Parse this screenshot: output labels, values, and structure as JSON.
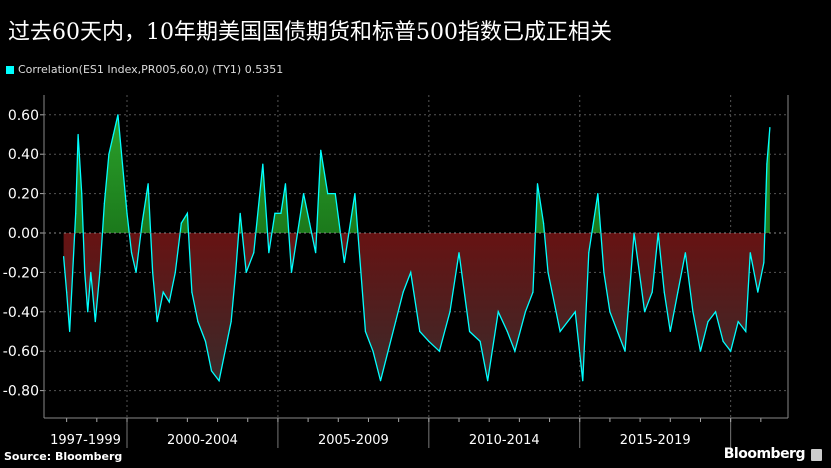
{
  "title": "过去60天内，10年期美国国债期货和标普500指数已成正相关",
  "source": "Source: Bloomberg",
  "brand": "Bloomberg",
  "chart_data": {
    "type": "area",
    "title": "过去60天内，10年期美国国债期货和标普500指数已成正相关",
    "legend": [
      {
        "label": "Correlation(ES1 Index,PR005,60,0) (TY1) 0.5351",
        "color": "#00ffff"
      }
    ],
    "legend_position": "top-left",
    "xlabel": "",
    "ylabel": "",
    "xlim": [
      1997.25,
      2021.9
    ],
    "ylim": [
      -0.9,
      0.78
    ],
    "yticks": [
      0.6,
      0.4,
      0.2,
      0.0,
      -0.2,
      -0.4,
      -0.6,
      -0.8
    ],
    "ytick_labels": [
      "0.60",
      "0.40",
      "0.20",
      "0.00",
      "-0.20",
      "-0.40",
      "-0.60",
      "-0.80"
    ],
    "x_periods": [
      {
        "label": "1997-1999",
        "from": 1997.25,
        "to": 2000
      },
      {
        "label": "2000-2004",
        "from": 2000,
        "to": 2005
      },
      {
        "label": "2005-2009",
        "from": 2005,
        "to": 2010
      },
      {
        "label": "2010-2014",
        "from": 2010,
        "to": 2015
      },
      {
        "label": "2015-2019",
        "from": 2015,
        "to": 2020
      }
    ],
    "x_separators": [
      2000,
      2005,
      2010,
      2015,
      2020
    ],
    "grid": true,
    "positive_color": "#1e8a1e",
    "negative_color": "#8b0000",
    "line_color": "#00ffff",
    "last_value": 0.5351,
    "series": [
      {
        "name": "Correlation(ES1 Index,PR005,60,0) (TY1)",
        "x": [
          1997.9,
          1998.0,
          1998.1,
          1998.2,
          1998.3,
          1998.38,
          1998.5,
          1998.6,
          1998.7,
          1998.8,
          1998.95,
          1999.1,
          1999.25,
          1999.4,
          1999.55,
          1999.7,
          1999.85,
          2000.0,
          2000.15,
          2000.3,
          2000.5,
          2000.7,
          2000.85,
          2001.0,
          2001.2,
          2001.4,
          2001.6,
          2001.8,
          2002.0,
          2002.15,
          2002.35,
          2002.6,
          2002.8,
          2003.05,
          2003.25,
          2003.45,
          2003.6,
          2003.75,
          2003.95,
          2004.2,
          2004.5,
          2004.7,
          2004.9,
          2005.1,
          2005.25,
          2005.45,
          2005.65,
          2005.85,
          2006.05,
          2006.25,
          2006.42,
          2006.65,
          2006.9,
          2007.2,
          2007.55,
          2007.9,
          2008.15,
          2008.4,
          2008.65,
          2008.9,
          2009.15,
          2009.4,
          2009.7,
          2010.0,
          2010.35,
          2010.7,
          2011.0,
          2011.35,
          2011.7,
          2011.95,
          2012.3,
          2012.6,
          2012.85,
          2013.2,
          2013.45,
          2013.6,
          2013.8,
          2013.95,
          2014.35,
          2014.85,
          2015.1,
          2015.3,
          2015.6,
          2015.8,
          2016.0,
          2016.25,
          2016.5,
          2016.8,
          2017.15,
          2017.4,
          2017.6,
          2017.8,
          2018.0,
          2018.25,
          2018.5,
          2018.75,
          2019.0,
          2019.25,
          2019.5,
          2019.75,
          2020.0,
          2020.25,
          2020.5,
          2020.65,
          2020.9,
          2021.1,
          2021.2,
          2021.3
        ],
        "y": [
          -0.12,
          -0.3,
          -0.5,
          -0.2,
          0.1,
          0.5,
          0.2,
          -0.2,
          -0.4,
          -0.2,
          -0.45,
          -0.2,
          0.15,
          0.4,
          0.5,
          0.6,
          0.35,
          0.1,
          -0.1,
          -0.2,
          0.05,
          0.25,
          -0.2,
          -0.45,
          -0.3,
          -0.35,
          -0.2,
          0.05,
          0.1,
          -0.3,
          -0.45,
          -0.55,
          -0.7,
          -0.75,
          -0.6,
          -0.45,
          -0.2,
          0.1,
          -0.2,
          -0.1,
          0.35,
          -0.1,
          0.1,
          0.1,
          0.25,
          -0.2,
          0.0,
          0.2,
          0.05,
          -0.1,
          0.42,
          0.2,
          0.2,
          -0.15,
          0.2,
          -0.5,
          -0.6,
          -0.75,
          -0.6,
          -0.45,
          -0.3,
          -0.2,
          -0.5,
          -0.55,
          -0.6,
          -0.4,
          -0.1,
          -0.5,
          -0.55,
          -0.75,
          -0.4,
          -0.5,
          -0.6,
          -0.4,
          -0.3,
          0.25,
          0.05,
          -0.2,
          -0.5,
          -0.4,
          -0.75,
          -0.1,
          0.2,
          -0.2,
          -0.4,
          -0.5,
          -0.6,
          0.0,
          -0.4,
          -0.3,
          0.0,
          -0.3,
          -0.5,
          -0.3,
          -0.1,
          -0.4,
          -0.6,
          -0.45,
          -0.4,
          -0.55,
          -0.6,
          -0.45,
          -0.5,
          -0.1,
          -0.3,
          -0.15,
          0.35,
          0.5351
        ]
      }
    ]
  }
}
